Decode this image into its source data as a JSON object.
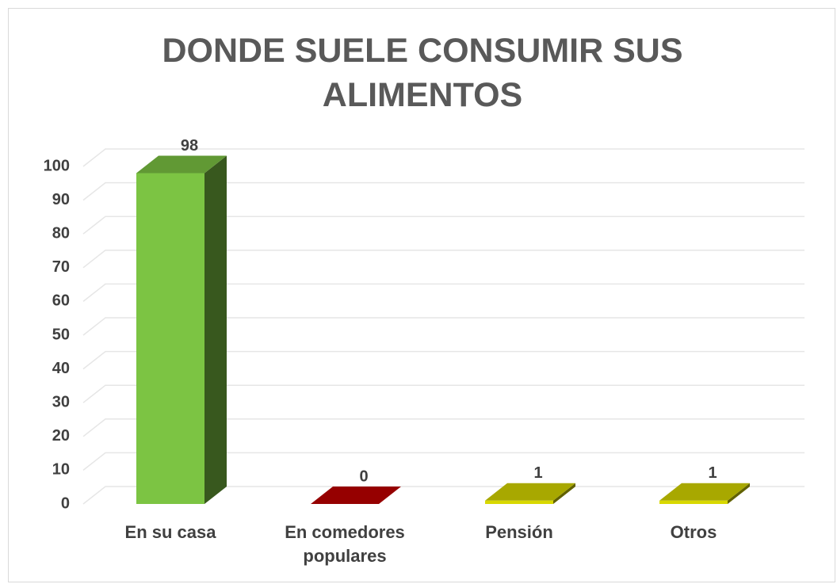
{
  "chart_data": {
    "type": "bar3d",
    "title": "DONDE SUELE CONSUMIR SUS ALIMENTOS",
    "categories": [
      "En su casa",
      "En comedores populares",
      "Pensión",
      "Otros"
    ],
    "values": [
      98,
      0,
      1,
      1
    ],
    "colors": [
      "#7cc443",
      "#c00000",
      "#d8d800",
      "#d8d800"
    ],
    "ylim": [
      0,
      100
    ],
    "yticks": [
      0,
      10,
      20,
      30,
      40,
      50,
      60,
      70,
      80,
      90,
      100
    ],
    "grid": true
  }
}
